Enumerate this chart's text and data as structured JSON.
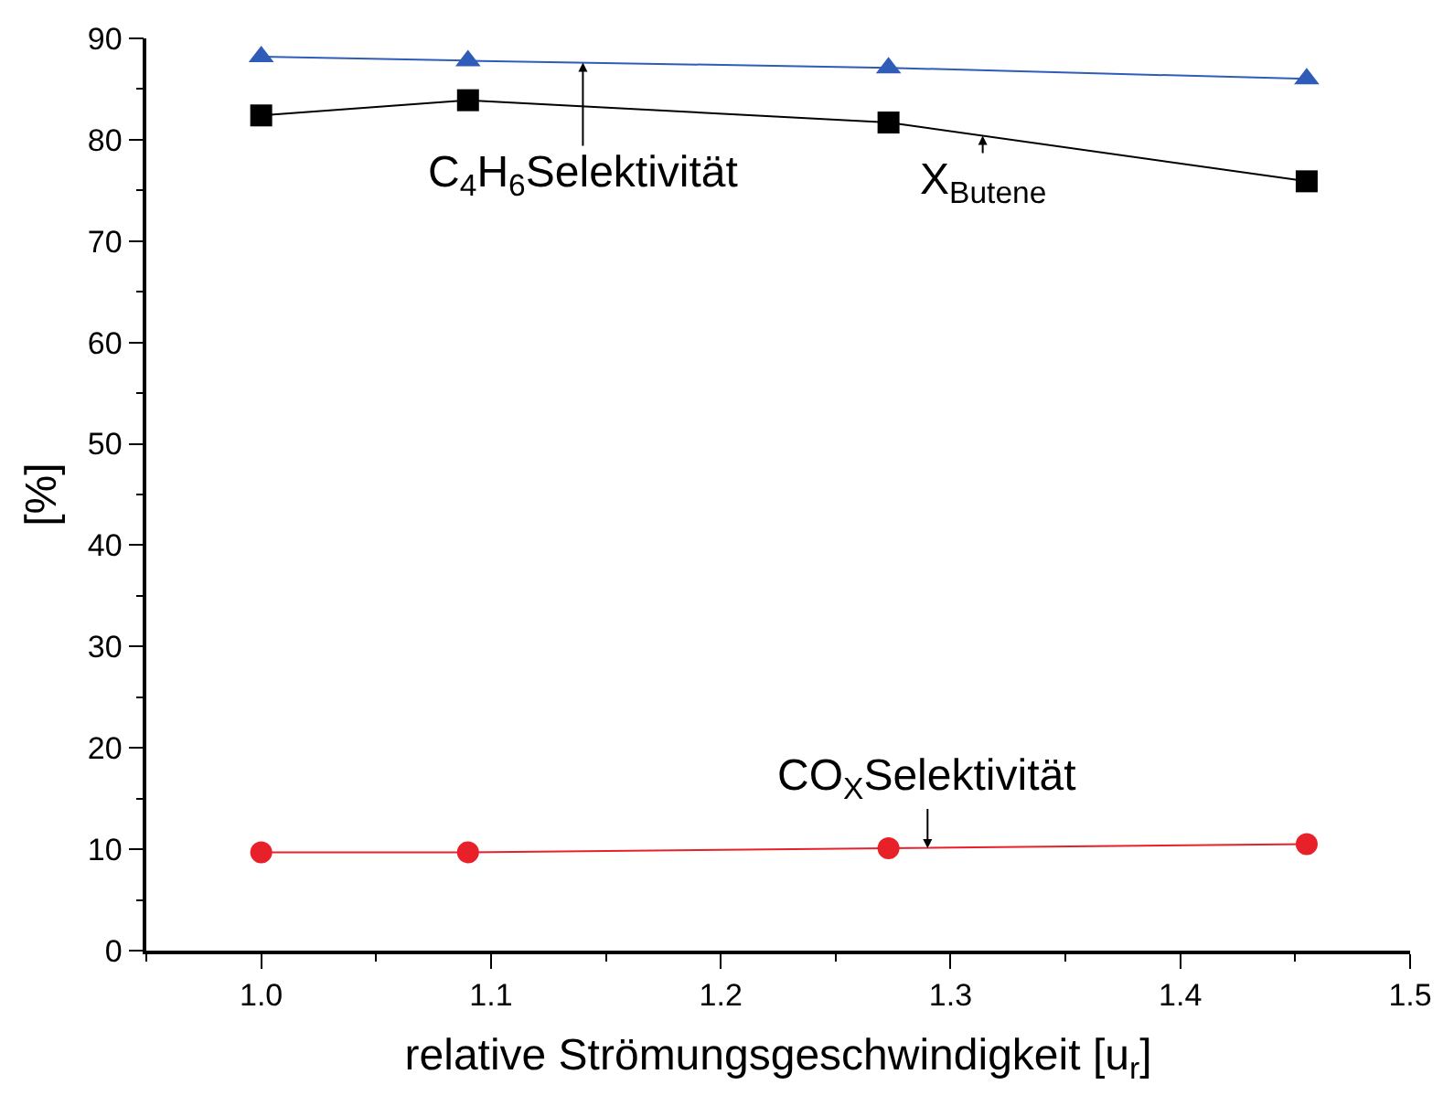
{
  "chart_data": {
    "type": "line",
    "xlabel": "relative Strömungsgeschwindigkeit [u$_{r}$]",
    "ylabel": "[%]",
    "x": [
      1.0,
      1.09,
      1.273,
      1.455
    ],
    "series": [
      {
        "color": "#2e5cb8",
        "marker": "triangle",
        "values": [
          88.2,
          87.8,
          87.1,
          86.0
        ]
      },
      {
        "color": "#000000",
        "marker": "square",
        "values": [
          82.4,
          83.9,
          81.7,
          75.9
        ]
      },
      {
        "color": "#e8202a",
        "marker": "circle",
        "values": [
          9.7,
          9.7,
          10.1,
          10.5
        ]
      }
    ],
    "annotations": [
      {
        "text": "C$_{4}$H$_{6}$Selektivität",
        "x": 1.14,
        "y": 87.6
      },
      {
        "text": "X$_{Butene}$",
        "x": 1.314,
        "y": 80.4
      },
      {
        "text": "CO$_{X}$Selektivität",
        "x": 1.29,
        "y": 10.1
      }
    ],
    "xlim": [
      0.95,
      1.5
    ],
    "xticks": [
      {
        "value": 1.0,
        "label": "1.0"
      },
      1.1,
      1.2,
      1.3,
      1.4,
      1.5
    ],
    "ylim": [
      0,
      90
    ],
    "yticks": [
      0,
      10,
      20,
      30,
      40,
      50,
      60,
      70,
      80,
      90
    ]
  }
}
